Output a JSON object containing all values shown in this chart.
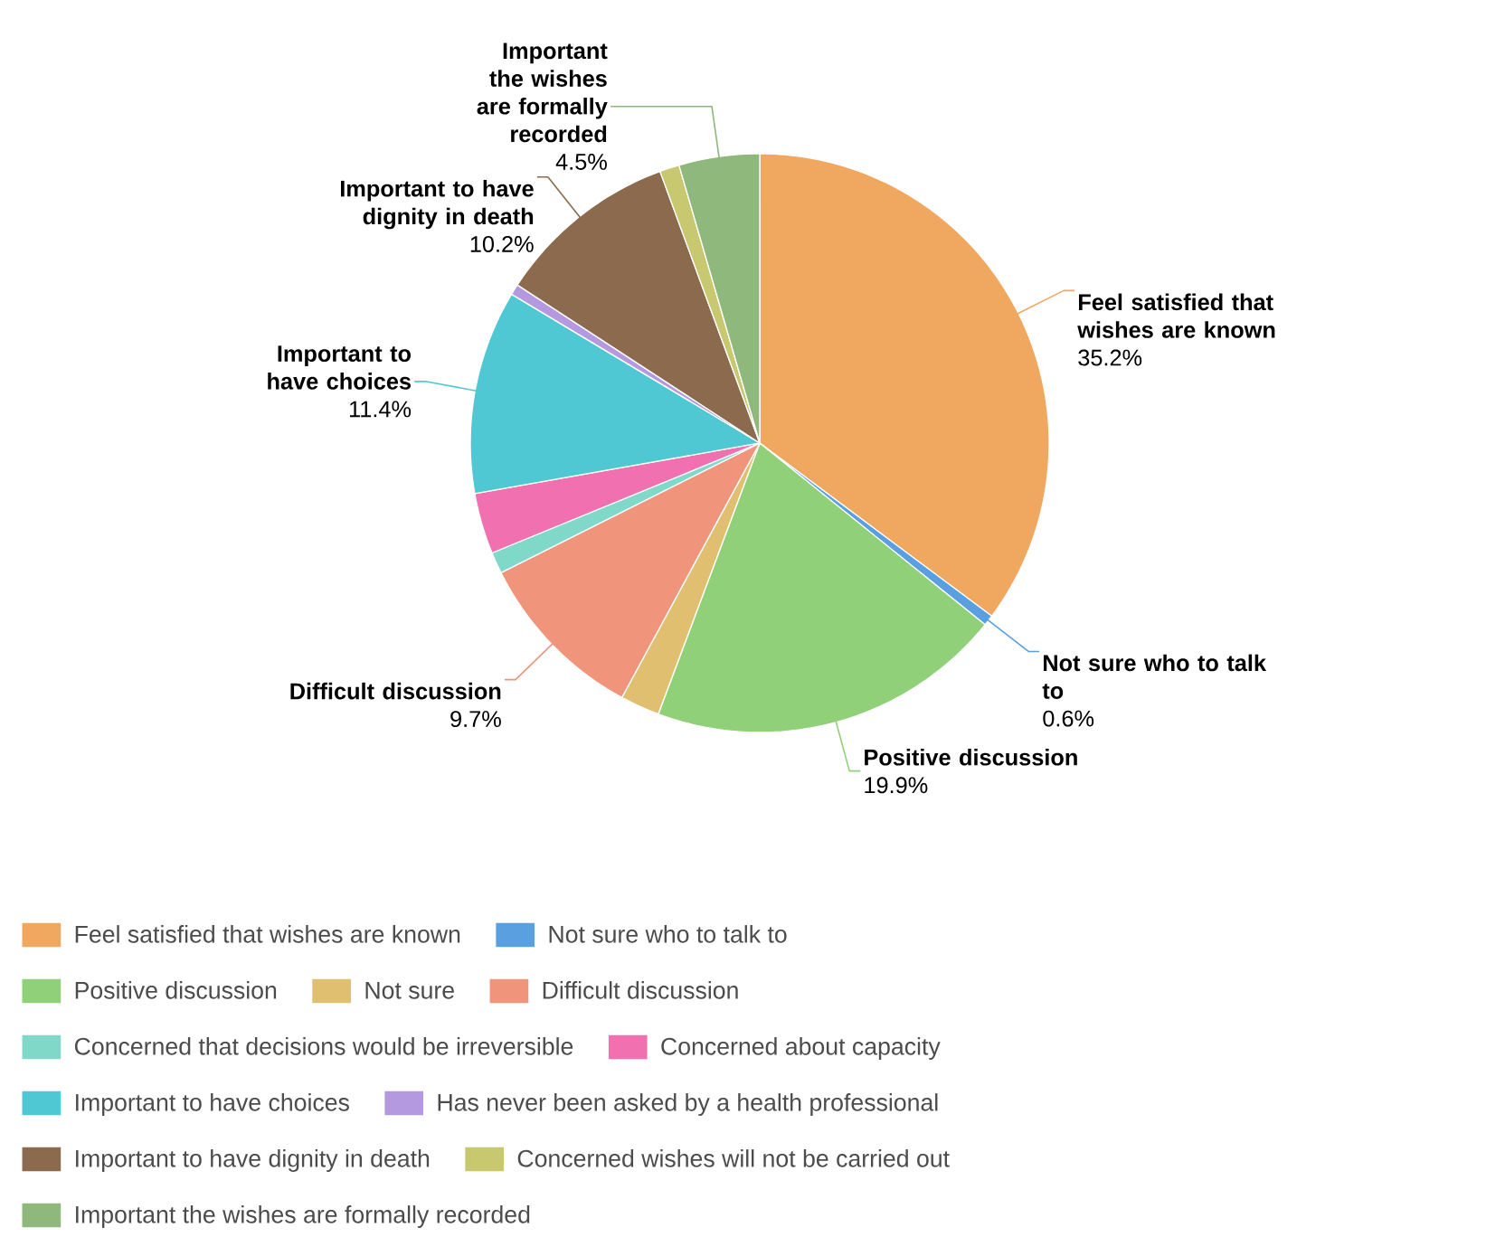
{
  "chart_data": {
    "type": "pie",
    "categories": [
      "Feel satisfied that wishes are known",
      "Not sure who to talk to",
      "Positive discussion",
      "Not sure",
      "Difficult discussion",
      "Concerned that decisions would be irreversible",
      "Concerned about capacity",
      "Important to have choices",
      "Has never been asked by a health professional",
      "Important to have dignity in death",
      "Concerned wishes will not be carried out",
      "Important the wishes are formally recorded"
    ],
    "values": [
      35.2,
      0.6,
      19.9,
      2.2,
      9.7,
      1.2,
      3.4,
      11.4,
      0.6,
      10.2,
      1.1,
      4.5
    ],
    "colors": [
      "#f0a860",
      "#5aa0e0",
      "#90d078",
      "#e0c070",
      "#f0947c",
      "#80d8c8",
      "#f070b0",
      "#50c8d4",
      "#b498e0",
      "#8b6a4e",
      "#c8c870",
      "#8fb87c"
    ],
    "value_labels": [
      "35.2%",
      "0.6%",
      "19.9%",
      null,
      "9.7%",
      null,
      null,
      "11.4%",
      null,
      "10.2%",
      null,
      "4.5%"
    ],
    "legend": "bottom"
  }
}
